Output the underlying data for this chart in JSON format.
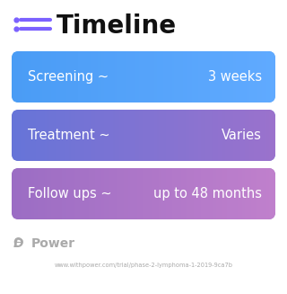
{
  "title": "Timeline",
  "title_fontsize": 20,
  "title_fontweight": "bold",
  "background_color": "#ffffff",
  "rows": [
    {
      "left_text": "Screening ~",
      "right_text": "3 weeks",
      "color_l": "#4A9CF5",
      "color_r": "#60AAFF"
    },
    {
      "left_text": "Treatment ~",
      "right_text": "Varies",
      "color_l": "#6674D8",
      "color_r": "#9B72CC"
    },
    {
      "left_text": "Follow ups ~",
      "right_text": "up to 48 months",
      "color_l": "#9B6DC4",
      "color_r": "#C080CC"
    }
  ],
  "icon_color": "#7B61FF",
  "footer_logo": "Power",
  "footer_url": "www.withpower.com/trial/phase-2-lymphoma-1-2019-9ca7b",
  "footer_color": "#aaaaaa",
  "text_color": "#ffffff",
  "row_text_fontsize": 10.5
}
